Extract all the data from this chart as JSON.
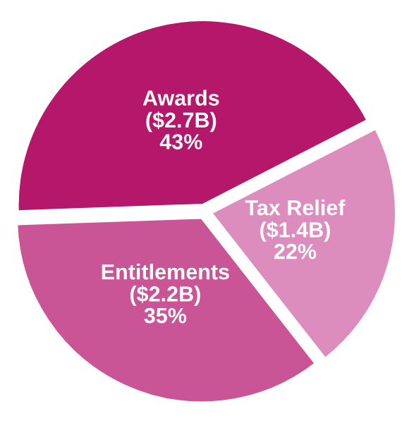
{
  "chart_data": {
    "type": "pie",
    "categories": [
      "Awards",
      "Tax Relief",
      "Entitlements"
    ],
    "values": [
      43,
      22,
      35
    ],
    "value_labels": [
      "($2.7B)\n43%",
      "($1.4B)\n22%",
      "($2.2B)\n35%"
    ],
    "colors": [
      "#b5176b",
      "#dc8dbd",
      "#c95597"
    ],
    "legend": false
  }
}
